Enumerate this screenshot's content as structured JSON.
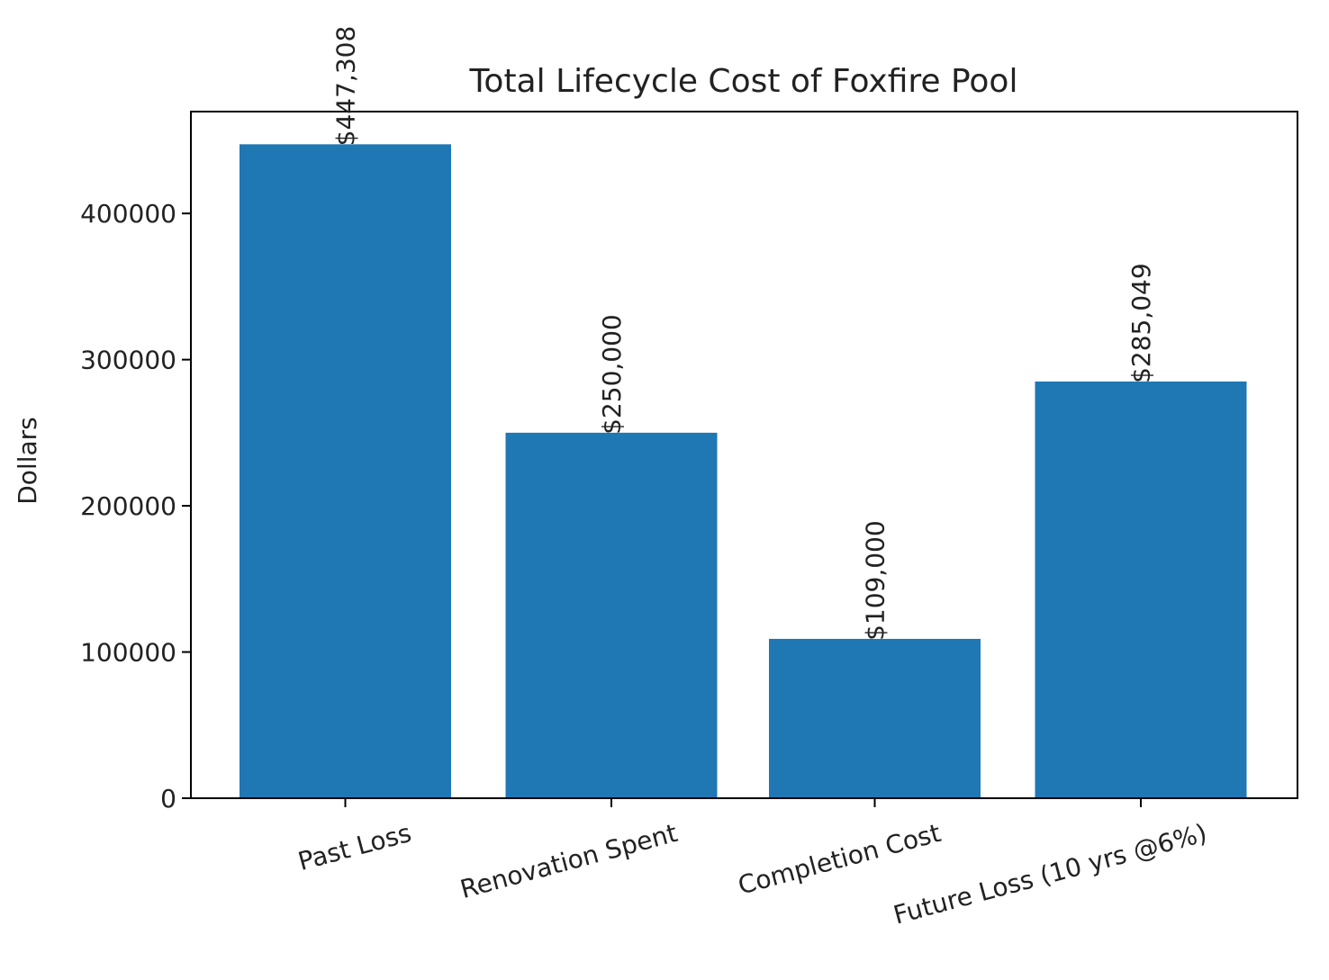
{
  "chart_data": {
    "type": "bar",
    "title": "Total Lifecycle Cost of Foxfire Pool",
    "xlabel": "",
    "ylabel": "Dollars",
    "categories": [
      "Past Loss",
      "Renovation Spent",
      "Completion Cost",
      "Future Loss (10 yrs @6%)"
    ],
    "values": [
      447308,
      250000,
      109000,
      285049
    ],
    "value_labels": [
      "$447,308",
      "$250,000",
      "$109,000",
      "$285,049"
    ],
    "ylim": [
      0,
      469673
    ],
    "yticks": [
      0,
      100000,
      200000,
      300000,
      400000
    ],
    "ytick_labels": [
      "0",
      "100000",
      "200000",
      "300000",
      "400000"
    ],
    "bar_color": "#1f77b4",
    "grid": false,
    "legend": "none"
  }
}
